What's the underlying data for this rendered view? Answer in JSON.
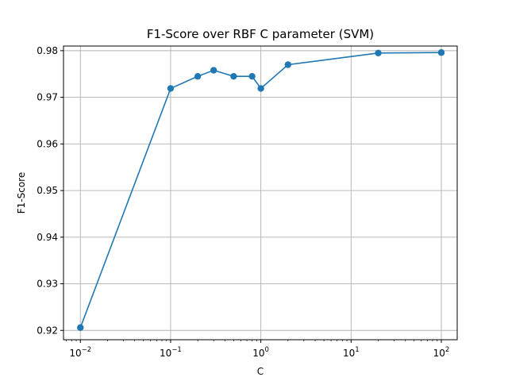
{
  "chart_data": {
    "type": "line",
    "title": "F1-Score over RBF C parameter (SVM)",
    "xlabel": "C",
    "ylabel": "F1-Score",
    "x_scale": "log",
    "xlim": [
      0.0065,
      150
    ],
    "ylim": [
      0.918,
      0.981
    ],
    "grid": true,
    "x_ticks": [
      {
        "value": 0.01,
        "base": "10",
        "exp": "−2"
      },
      {
        "value": 0.1,
        "base": "10",
        "exp": "−1"
      },
      {
        "value": 1,
        "base": "10",
        "exp": "0"
      },
      {
        "value": 10,
        "base": "10",
        "exp": "1"
      },
      {
        "value": 100,
        "base": "10",
        "exp": "2"
      }
    ],
    "y_ticks": [
      {
        "value": 0.92,
        "label": "0.92"
      },
      {
        "value": 0.93,
        "label": "0.93"
      },
      {
        "value": 0.94,
        "label": "0.94"
      },
      {
        "value": 0.95,
        "label": "0.95"
      },
      {
        "value": 0.96,
        "label": "0.96"
      },
      {
        "value": 0.97,
        "label": "0.97"
      },
      {
        "value": 0.98,
        "label": "0.98"
      }
    ],
    "series": [
      {
        "color": "#1f77b4",
        "marker": "circle",
        "x": [
          0.01,
          0.1,
          0.2,
          0.3,
          0.5,
          0.8,
          1,
          2,
          20,
          100
        ],
        "y": [
          0.9206,
          0.9719,
          0.9745,
          0.9758,
          0.9745,
          0.9745,
          0.9719,
          0.977,
          0.9795,
          0.9796
        ]
      }
    ]
  }
}
